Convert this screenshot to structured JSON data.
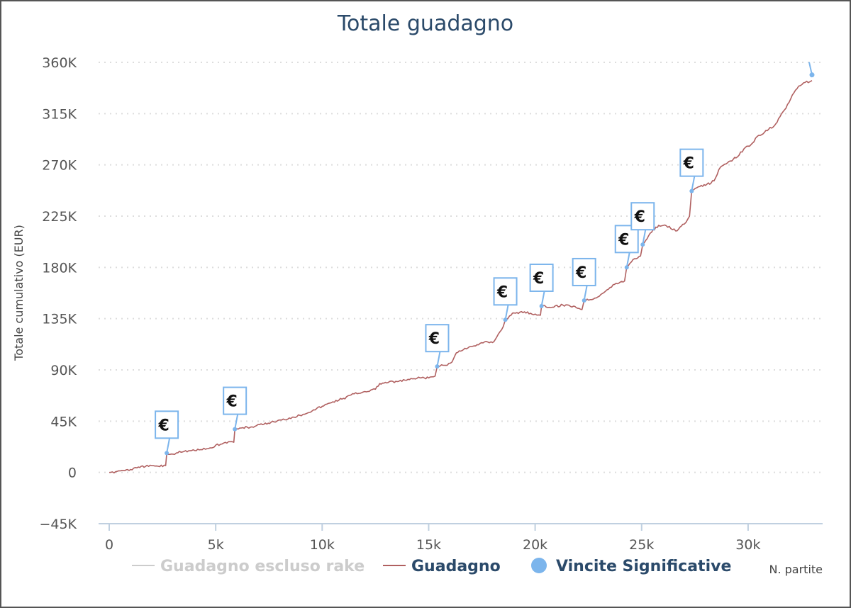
{
  "chart_data": {
    "type": "line",
    "title": "Totale guadagno",
    "ylabel": "Totale cumulativo (EUR)",
    "xlabel": "N. partite",
    "xlim": [
      -500,
      33500
    ],
    "ylim": [
      -45000,
      360000
    ],
    "x_ticks": [
      0,
      5000,
      10000,
      15000,
      20000,
      25000,
      30000
    ],
    "x_tick_labels": [
      "0",
      "5k",
      "10k",
      "15k",
      "20k",
      "25k",
      "30k"
    ],
    "y_ticks": [
      -45000,
      0,
      45000,
      90000,
      135000,
      180000,
      225000,
      270000,
      315000,
      360000
    ],
    "y_tick_labels": [
      "−45K",
      "0",
      "45K",
      "90K",
      "135K",
      "180K",
      "225K",
      "270K",
      "315K",
      "360K"
    ],
    "grid": "horizontal-dotted",
    "legend_position": "bottom",
    "series": [
      {
        "name": "Guadagno escluso rake",
        "color": "#cccccc",
        "visible": false,
        "points": []
      },
      {
        "name": "Guadagno",
        "color": "#b06060",
        "points": [
          [
            0,
            0
          ],
          [
            300,
            600
          ],
          [
            600,
            1800
          ],
          [
            1000,
            2500
          ],
          [
            1300,
            4000
          ],
          [
            1700,
            5200
          ],
          [
            2000,
            6000
          ],
          [
            2300,
            5400
          ],
          [
            2650,
            6000
          ],
          [
            2700,
            16500
          ],
          [
            3000,
            16000
          ],
          [
            3300,
            18500
          ],
          [
            3800,
            19000
          ],
          [
            4300,
            20000
          ],
          [
            4800,
            21500
          ],
          [
            5000,
            24000
          ],
          [
            5300,
            25000
          ],
          [
            5600,
            27000
          ],
          [
            5850,
            26500
          ],
          [
            5900,
            38000
          ],
          [
            6200,
            39000
          ],
          [
            6700,
            40000
          ],
          [
            7200,
            42000
          ],
          [
            7600,
            44000
          ],
          [
            8100,
            46000
          ],
          [
            8600,
            48500
          ],
          [
            9100,
            51000
          ],
          [
            9600,
            55000
          ],
          [
            10000,
            58000
          ],
          [
            10500,
            62000
          ],
          [
            11000,
            65000
          ],
          [
            11500,
            69000
          ],
          [
            12000,
            71000
          ],
          [
            12500,
            73000
          ],
          [
            12700,
            78000
          ],
          [
            13100,
            79000
          ],
          [
            13600,
            80000
          ],
          [
            14100,
            81500
          ],
          [
            14600,
            83000
          ],
          [
            15000,
            83000
          ],
          [
            15300,
            84500
          ],
          [
            15400,
            93000
          ],
          [
            15800,
            94000
          ],
          [
            16100,
            97000
          ],
          [
            16300,
            105000
          ],
          [
            16700,
            109000
          ],
          [
            17200,
            111000
          ],
          [
            17700,
            115000
          ],
          [
            18000,
            114000
          ],
          [
            18200,
            119000
          ],
          [
            18500,
            128000
          ],
          [
            18600,
            134000
          ],
          [
            19000,
            140000
          ],
          [
            19500,
            141000
          ],
          [
            20000,
            139000
          ],
          [
            20250,
            138000
          ],
          [
            20300,
            146000
          ],
          [
            20800,
            145000
          ],
          [
            21300,
            147000
          ],
          [
            21800,
            146000
          ],
          [
            22200,
            143000
          ],
          [
            22300,
            151000
          ],
          [
            22800,
            153000
          ],
          [
            23300,
            159000
          ],
          [
            23800,
            166000
          ],
          [
            24200,
            168000
          ],
          [
            24300,
            180000
          ],
          [
            24600,
            187000
          ],
          [
            24950,
            190000
          ],
          [
            25050,
            200000
          ],
          [
            25400,
            210000
          ],
          [
            25800,
            217000
          ],
          [
            26300,
            216000
          ],
          [
            26600,
            212000
          ],
          [
            27000,
            218000
          ],
          [
            27250,
            225000
          ],
          [
            27350,
            247000
          ],
          [
            27600,
            250000
          ],
          [
            28000,
            252000
          ],
          [
            28400,
            256000
          ],
          [
            28700,
            268000
          ],
          [
            29100,
            273000
          ],
          [
            29500,
            277000
          ],
          [
            29800,
            284000
          ],
          [
            30200,
            289000
          ],
          [
            30500,
            296000
          ],
          [
            30900,
            300000
          ],
          [
            31300,
            306000
          ],
          [
            31700,
            318000
          ],
          [
            32000,
            328000
          ],
          [
            32300,
            337000
          ],
          [
            32600,
            342000
          ],
          [
            32900,
            343000
          ],
          [
            33000,
            344000
          ]
        ]
      }
    ],
    "markers": {
      "name": "Vincite Significative",
      "color": "#7cb5ec",
      "symbol": "€",
      "points": [
        [
          2700,
          17000
        ],
        [
          5900,
          38000
        ],
        [
          15400,
          93000
        ],
        [
          18600,
          134000
        ],
        [
          20300,
          146000
        ],
        [
          22300,
          151000
        ],
        [
          24300,
          180000
        ],
        [
          25050,
          200000
        ],
        [
          27350,
          247000
        ],
        [
          33000,
          349000
        ]
      ]
    }
  },
  "legend": [
    {
      "label": "Guadagno escluso rake",
      "color": "#cccccc",
      "active": false
    },
    {
      "label": "Guadagno",
      "color": "#b06060",
      "active": true
    },
    {
      "label": "Vincite Significative",
      "color": "#7cb5ec",
      "active": true
    }
  ]
}
